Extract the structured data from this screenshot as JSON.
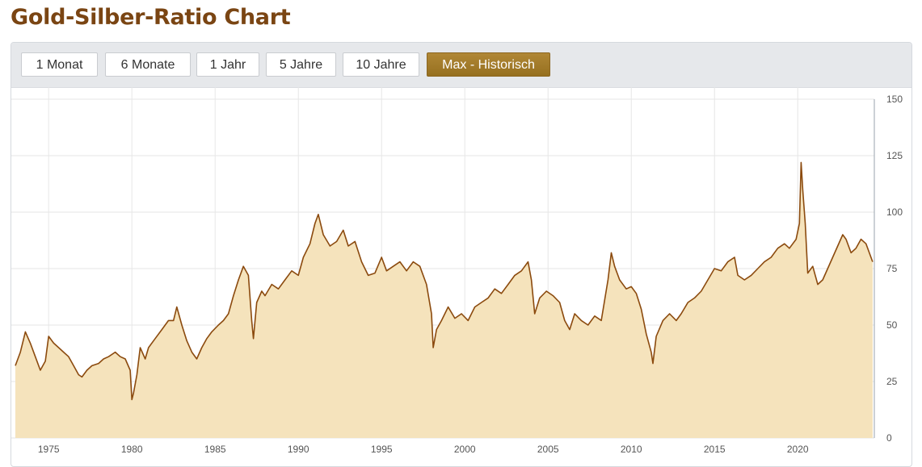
{
  "page": {
    "title": "Gold-Silber-Ratio Chart"
  },
  "toolbar": {
    "buttons": [
      {
        "label": "1 Monat",
        "active": false
      },
      {
        "label": "6 Monate",
        "active": false
      },
      {
        "label": "1 Jahr",
        "active": false
      },
      {
        "label": "5 Jahre",
        "active": false
      },
      {
        "label": "10 Jahre",
        "active": false
      },
      {
        "label": "Max - Historisch",
        "active": true
      }
    ]
  },
  "colors": {
    "line": "#8b4a0e",
    "area": "#f5e3bc",
    "grid": "#e6e6e6",
    "axis": "#9aa3ad",
    "active_button": "#a37a2b"
  },
  "chart_data": {
    "type": "area",
    "x_ticks": [
      1975,
      1980,
      1985,
      1990,
      1995,
      2000,
      2005,
      2010,
      2015,
      2020
    ],
    "y_ticks": [
      0,
      25,
      50,
      75,
      100,
      125,
      150
    ],
    "xlim": [
      1973,
      2024.6
    ],
    "ylim": [
      0,
      150
    ],
    "grid": true,
    "legend": "none",
    "y_axis_side": "right",
    "series": [
      {
        "points": [
          [
            1973.0,
            32
          ],
          [
            1973.3,
            38
          ],
          [
            1973.6,
            47
          ],
          [
            1973.9,
            42
          ],
          [
            1974.2,
            36
          ],
          [
            1974.5,
            30
          ],
          [
            1974.8,
            34
          ],
          [
            1975.0,
            45
          ],
          [
            1975.3,
            42
          ],
          [
            1975.6,
            40
          ],
          [
            1975.9,
            38
          ],
          [
            1976.2,
            36
          ],
          [
            1976.5,
            32
          ],
          [
            1976.8,
            28
          ],
          [
            1977.0,
            27
          ],
          [
            1977.3,
            30
          ],
          [
            1977.6,
            32
          ],
          [
            1978.0,
            33
          ],
          [
            1978.3,
            35
          ],
          [
            1978.6,
            36
          ],
          [
            1979.0,
            38
          ],
          [
            1979.3,
            36
          ],
          [
            1979.6,
            35
          ],
          [
            1979.9,
            30
          ],
          [
            1980.0,
            17
          ],
          [
            1980.1,
            20
          ],
          [
            1980.3,
            28
          ],
          [
            1980.5,
            40
          ],
          [
            1980.8,
            35
          ],
          [
            1981.0,
            40
          ],
          [
            1981.4,
            44
          ],
          [
            1981.8,
            48
          ],
          [
            1982.2,
            52
          ],
          [
            1982.5,
            52
          ],
          [
            1982.7,
            58
          ],
          [
            1983.0,
            50
          ],
          [
            1983.3,
            43
          ],
          [
            1983.6,
            38
          ],
          [
            1983.9,
            35
          ],
          [
            1984.2,
            40
          ],
          [
            1984.5,
            44
          ],
          [
            1984.8,
            47
          ],
          [
            1985.2,
            50
          ],
          [
            1985.5,
            52
          ],
          [
            1985.8,
            55
          ],
          [
            1986.1,
            63
          ],
          [
            1986.4,
            70
          ],
          [
            1986.7,
            76
          ],
          [
            1987.0,
            72
          ],
          [
            1987.2,
            52
          ],
          [
            1987.3,
            44
          ],
          [
            1987.5,
            60
          ],
          [
            1987.8,
            65
          ],
          [
            1988.0,
            63
          ],
          [
            1988.4,
            68
          ],
          [
            1988.8,
            66
          ],
          [
            1989.2,
            70
          ],
          [
            1989.6,
            74
          ],
          [
            1990.0,
            72
          ],
          [
            1990.3,
            80
          ],
          [
            1990.7,
            86
          ],
          [
            1991.0,
            95
          ],
          [
            1991.2,
            99
          ],
          [
            1991.5,
            90
          ],
          [
            1991.9,
            85
          ],
          [
            1992.3,
            87
          ],
          [
            1992.7,
            92
          ],
          [
            1993.0,
            85
          ],
          [
            1993.4,
            87
          ],
          [
            1993.8,
            78
          ],
          [
            1994.2,
            72
          ],
          [
            1994.6,
            73
          ],
          [
            1995.0,
            80
          ],
          [
            1995.3,
            74
          ],
          [
            1995.7,
            76
          ],
          [
            1996.1,
            78
          ],
          [
            1996.5,
            74
          ],
          [
            1996.9,
            78
          ],
          [
            1997.3,
            76
          ],
          [
            1997.7,
            68
          ],
          [
            1998.0,
            55
          ],
          [
            1998.1,
            40
          ],
          [
            1998.3,
            48
          ],
          [
            1998.6,
            52
          ],
          [
            1999.0,
            58
          ],
          [
            1999.4,
            53
          ],
          [
            1999.8,
            55
          ],
          [
            2000.2,
            52
          ],
          [
            2000.6,
            58
          ],
          [
            2001.0,
            60
          ],
          [
            2001.4,
            62
          ],
          [
            2001.8,
            66
          ],
          [
            2002.2,
            64
          ],
          [
            2002.6,
            68
          ],
          [
            2003.0,
            72
          ],
          [
            2003.4,
            74
          ],
          [
            2003.8,
            78
          ],
          [
            2004.0,
            70
          ],
          [
            2004.2,
            55
          ],
          [
            2004.5,
            62
          ],
          [
            2004.9,
            65
          ],
          [
            2005.3,
            63
          ],
          [
            2005.7,
            60
          ],
          [
            2006.0,
            52
          ],
          [
            2006.3,
            48
          ],
          [
            2006.6,
            55
          ],
          [
            2007.0,
            52
          ],
          [
            2007.4,
            50
          ],
          [
            2007.8,
            54
          ],
          [
            2008.2,
            52
          ],
          [
            2008.6,
            70
          ],
          [
            2008.8,
            82
          ],
          [
            2009.0,
            76
          ],
          [
            2009.3,
            70
          ],
          [
            2009.7,
            66
          ],
          [
            2010.0,
            67
          ],
          [
            2010.3,
            64
          ],
          [
            2010.6,
            57
          ],
          [
            2010.9,
            46
          ],
          [
            2011.2,
            38
          ],
          [
            2011.3,
            33
          ],
          [
            2011.5,
            45
          ],
          [
            2011.9,
            52
          ],
          [
            2012.3,
            55
          ],
          [
            2012.7,
            52
          ],
          [
            2013.0,
            55
          ],
          [
            2013.4,
            60
          ],
          [
            2013.8,
            62
          ],
          [
            2014.2,
            65
          ],
          [
            2014.6,
            70
          ],
          [
            2015.0,
            75
          ],
          [
            2015.4,
            74
          ],
          [
            2015.8,
            78
          ],
          [
            2016.2,
            80
          ],
          [
            2016.4,
            72
          ],
          [
            2016.8,
            70
          ],
          [
            2017.2,
            72
          ],
          [
            2017.6,
            75
          ],
          [
            2018.0,
            78
          ],
          [
            2018.4,
            80
          ],
          [
            2018.8,
            84
          ],
          [
            2019.2,
            86
          ],
          [
            2019.5,
            84
          ],
          [
            2019.9,
            88
          ],
          [
            2020.1,
            95
          ],
          [
            2020.2,
            122
          ],
          [
            2020.3,
            110
          ],
          [
            2020.45,
            95
          ],
          [
            2020.6,
            73
          ],
          [
            2020.9,
            76
          ],
          [
            2021.2,
            68
          ],
          [
            2021.5,
            70
          ],
          [
            2021.8,
            75
          ],
          [
            2022.1,
            80
          ],
          [
            2022.4,
            85
          ],
          [
            2022.7,
            90
          ],
          [
            2022.9,
            88
          ],
          [
            2023.2,
            82
          ],
          [
            2023.5,
            84
          ],
          [
            2023.8,
            88
          ],
          [
            2024.1,
            86
          ],
          [
            2024.3,
            82
          ],
          [
            2024.5,
            78
          ]
        ]
      }
    ]
  }
}
